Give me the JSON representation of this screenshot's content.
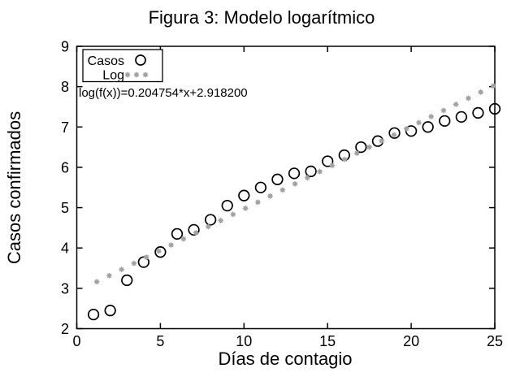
{
  "window": {
    "background": "#ffffff"
  },
  "colors": {
    "frame": "#000000",
    "text": "#000000",
    "casos_marker": "#000000",
    "log_marker": "#a3a3a3",
    "legend_box_fill": "#ffffff"
  },
  "chart_data": {
    "type": "scatter",
    "title": "Figura 3: Modelo logarítmico",
    "xlabel": "Días de contagio",
    "ylabel": "Casos confirmados",
    "xlim": [
      0,
      25
    ],
    "ylim": [
      2,
      9
    ],
    "x_ticks": [
      0,
      5,
      10,
      15,
      20,
      25
    ],
    "y_ticks": [
      2,
      3,
      4,
      5,
      6,
      7,
      8,
      9
    ],
    "grid": false,
    "annotation": "log(f(x))=0.204754*x+2.918200",
    "legend": {
      "position": "top-left-inside",
      "entries": [
        {
          "label": "Casos",
          "marker": "open-circle",
          "color": "#000000"
        },
        {
          "label": "Log",
          "marker": "filled-star-dots",
          "color": "#a3a3a3"
        }
      ]
    },
    "series": [
      {
        "name": "Casos",
        "marker": "open-circle",
        "color": "#000000",
        "x": [
          1,
          2,
          3,
          4,
          5,
          6,
          7,
          8,
          9,
          10,
          11,
          12,
          13,
          14,
          15,
          16,
          17,
          18,
          19,
          20,
          21,
          22,
          23,
          24,
          25
        ],
        "y": [
          2.35,
          2.45,
          3.2,
          3.65,
          3.9,
          4.35,
          4.45,
          4.7,
          5.05,
          5.3,
          5.5,
          5.7,
          5.85,
          5.9,
          6.15,
          6.3,
          6.5,
          6.65,
          6.85,
          6.9,
          7.0,
          7.15,
          7.25,
          7.35,
          7.45
        ]
      },
      {
        "name": "Log",
        "marker": "filled-star-dots",
        "color": "#a3a3a3",
        "fit_expression": "log(f(x)) = 0.204754*x + 2.918200",
        "slope": 0.204754,
        "intercept": 2.9182,
        "sample_x_start": 1.2,
        "sample_x_end": 24.9,
        "sample_count": 33
      }
    ]
  }
}
